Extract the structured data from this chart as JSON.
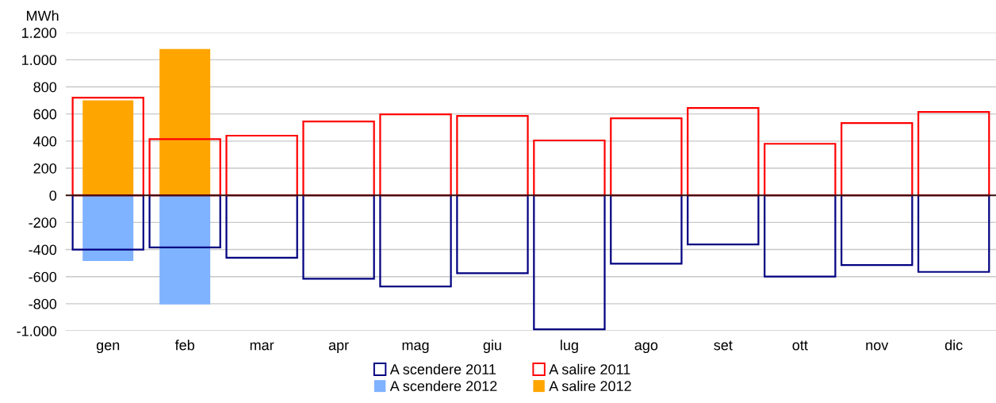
{
  "chart_data": {
    "type": "bar",
    "ylabel": "MWh",
    "categories": [
      "gen",
      "feb",
      "mar",
      "apr",
      "mag",
      "giu",
      "lug",
      "ago",
      "set",
      "ott",
      "nov",
      "dic"
    ],
    "series": [
      {
        "name": "A scendere 2011",
        "color": "#000080",
        "values": [
          -400,
          -385,
          -460,
          -615,
          -673,
          -574,
          -989,
          -504,
          -363,
          -600,
          -515,
          -565
        ]
      },
      {
        "name": "A salire 2011",
        "color": "#ff0000",
        "values": [
          720,
          415,
          440,
          545,
          597,
          585,
          405,
          568,
          644,
          380,
          533,
          615
        ]
      },
      {
        "name": "A scendere 2012",
        "color": "#7fb2ff",
        "values": [
          -485,
          -805,
          null,
          null,
          null,
          null,
          null,
          null,
          null,
          null,
          null,
          null
        ]
      },
      {
        "name": "A salire 2012",
        "color": "#ffa500",
        "values": [
          700,
          1080,
          null,
          null,
          null,
          null,
          null,
          null,
          null,
          null,
          null,
          null
        ]
      }
    ],
    "ylim": [
      -1000,
      1200
    ],
    "yticks": [
      {
        "value": -1000,
        "label": "-1.000"
      },
      -800,
      -600,
      -400,
      -200,
      0,
      200,
      400,
      600,
      800,
      {
        "value": 1000,
        "label": "1.000"
      },
      {
        "value": 1200,
        "label": "1.200"
      }
    ],
    "grid": "y",
    "legend": "bottom"
  }
}
